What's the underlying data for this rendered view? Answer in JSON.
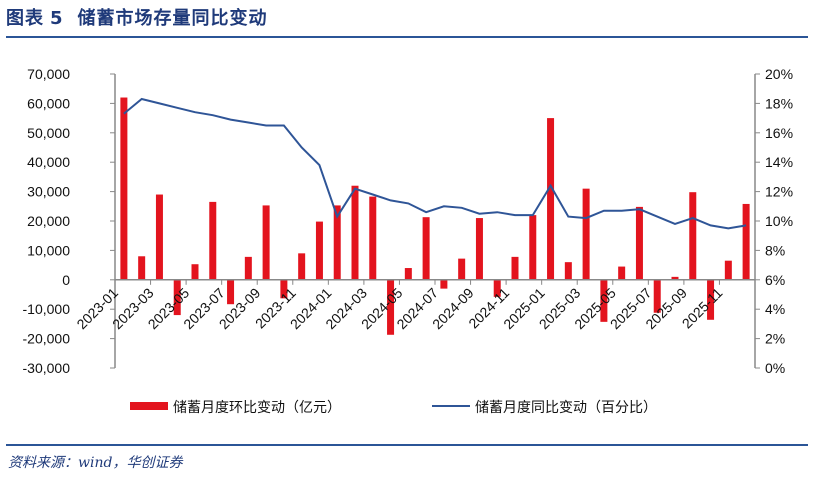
{
  "header": {
    "figure_label": "图表",
    "figure_number": "5",
    "title": "储蓄市场存量同比变动"
  },
  "source": "资料来源：wind，华创证券",
  "colors": {
    "bar": "#E3141E",
    "line": "#2F5597",
    "title": "#1F3A7A"
  },
  "chart_data": {
    "type": "bar+line",
    "title": "储蓄市场存量同比变动",
    "categories": [
      "2023-01",
      "2023-02",
      "2023-03",
      "2023-04",
      "2023-05",
      "2023-06",
      "2023-07",
      "2023-08",
      "2023-09",
      "2023-10",
      "2023-11",
      "2023-12",
      "2024-01",
      "2024-02",
      "2024-03",
      "2024-04",
      "2024-05",
      "2024-06",
      "2024-07",
      "2024-08",
      "2024-09",
      "2024-10",
      "2024-11",
      "2024-12",
      "2025-01",
      "2025-02",
      "2025-03",
      "2025-04",
      "2025-05",
      "2025-06",
      "2025-07",
      "2025-08",
      "2025-09",
      "2025-10",
      "2025-11",
      "2025-12"
    ],
    "x_tick_labels": [
      "2023-01",
      "2023-03",
      "2023-05",
      "2023-07",
      "2023-09",
      "2023-11",
      "2024-01",
      "2024-03",
      "2024-05",
      "2024-07",
      "2024-09",
      "2024-11",
      "2025-01",
      "2025-03",
      "2025-05",
      "2025-07",
      "2025-09",
      "2025-11"
    ],
    "series": [
      {
        "name": "储蓄月度环比变动（亿元）",
        "type": "bar",
        "axis": "left",
        "values": [
          62000,
          8000,
          29000,
          -12000,
          5300,
          26500,
          -8300,
          7800,
          25300,
          -6300,
          9000,
          19800,
          25300,
          32000,
          28300,
          -18700,
          4000,
          21300,
          -3000,
          7200,
          21000,
          -5800,
          7800,
          22000,
          55000,
          6000,
          31000,
          -14300,
          4500,
          24800,
          -11200,
          1000,
          29800,
          -13600,
          6500,
          25800
        ]
      },
      {
        "name": "储蓄月度同比变动（百分比）",
        "type": "line",
        "axis": "right",
        "values": [
          17.3,
          18.3,
          18.0,
          17.7,
          17.4,
          17.2,
          16.9,
          16.7,
          16.5,
          16.5,
          15.0,
          13.8,
          10.3,
          12.2,
          11.8,
          11.4,
          11.2,
          10.6,
          11.0,
          10.9,
          10.5,
          10.6,
          10.4,
          10.4,
          12.4,
          10.3,
          10.2,
          10.7,
          10.7,
          10.8,
          10.3,
          9.8,
          10.2,
          9.7,
          9.5,
          9.7
        ]
      }
    ],
    "ylim_left": [
      -30000,
      70000
    ],
    "yticks_left": [
      "70,000",
      "60,000",
      "50,000",
      "40,000",
      "30,000",
      "20,000",
      "10,000",
      "0",
      "-10,000",
      "-20,000",
      "-30,000"
    ],
    "ylim_right": [
      0,
      20
    ],
    "yticks_right": [
      "20%",
      "18%",
      "16%",
      "14%",
      "12%",
      "10%",
      "8%",
      "6%",
      "4%",
      "2%",
      "0%"
    ],
    "legend_position": "bottom",
    "grid": false
  }
}
